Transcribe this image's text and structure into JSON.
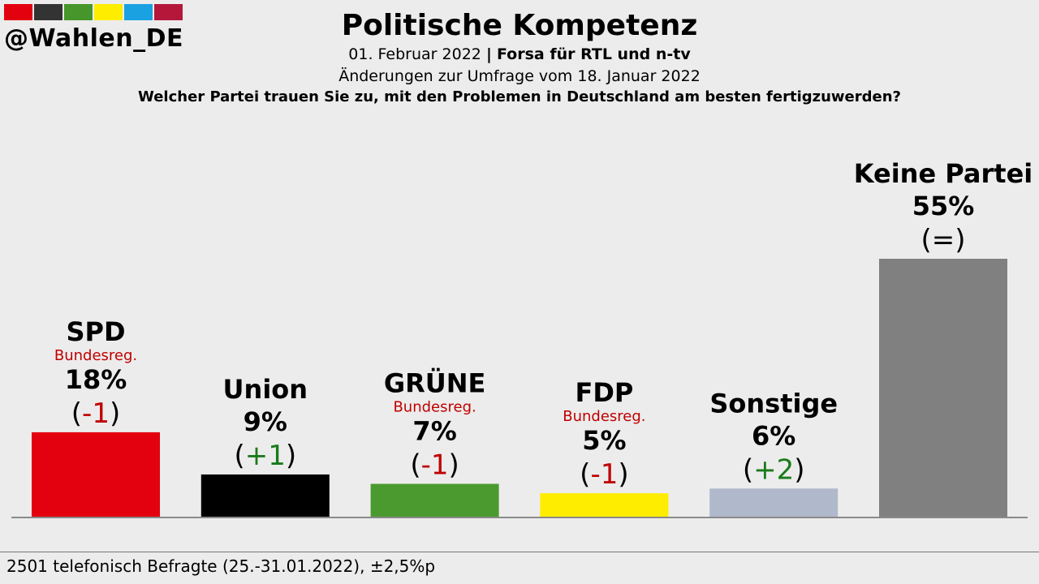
{
  "brand": {
    "handle": "@Wahlen_DE",
    "swatch_colors": [
      "#e3000f",
      "#333333",
      "#46962b",
      "#ffed00",
      "#1aa1e2",
      "#b5173b"
    ]
  },
  "header": {
    "title": "Politische Kompetenz",
    "date": "01. Februar 2022",
    "separator": "|",
    "source": "Forsa für RTL und n-tv",
    "comparison": "Änderungen zur Umfrage vom 18. Januar 2022",
    "question": "Welcher Partei trauen Sie zu, mit den Problemen in Deutschland am besten fertigzuwerden?"
  },
  "chart_data": {
    "type": "bar",
    "categories": [
      "SPD",
      "Union",
      "GRÜNE",
      "FDP",
      "Sonstige",
      "Keine Partei"
    ],
    "values": [
      18,
      9,
      7,
      5,
      6,
      55
    ],
    "value_labels": [
      "18%",
      "9%",
      "7%",
      "5%",
      "6%",
      "55%"
    ],
    "changes": [
      "-1",
      "+1",
      "-1",
      "-1",
      "+2",
      "="
    ],
    "change_labels": [
      {
        "open": "(",
        "text": "-1",
        "close": ")"
      },
      {
        "open": "(",
        "text": "+1",
        "close": ")"
      },
      {
        "open": "(",
        "text": "-1",
        "close": ")"
      },
      {
        "open": "(",
        "text": "-1",
        "close": ")"
      },
      {
        "open": "(",
        "text": "+2",
        "close": ")"
      },
      {
        "open": "(",
        "text": "=",
        "close": ")"
      }
    ],
    "government_tag": [
      "Bundesreg.",
      null,
      "Bundesreg.",
      "Bundesreg.",
      null,
      null
    ],
    "colors": [
      "#e3000f",
      "#000000",
      "#4b9a2f",
      "#ffed00",
      "#b0b9cb",
      "#808080"
    ],
    "change_colors": {
      "negative": "#c00000",
      "positive": "#1a7a1a",
      "neutral": "#000000"
    },
    "unit": "%",
    "ylim": [
      0,
      55
    ],
    "grid": false,
    "legend": "none"
  },
  "footer": {
    "text": "2501 telefonisch Befragte (25.-31.01.2022), ±2,5%p"
  }
}
